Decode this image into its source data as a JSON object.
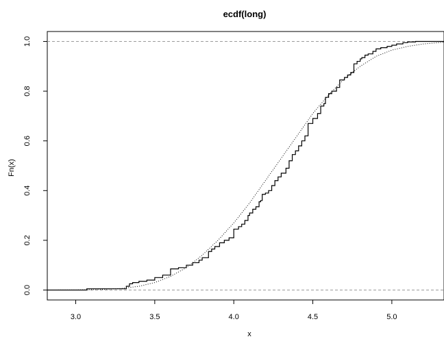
{
  "chart_data": {
    "type": "line",
    "title": "ecdf(long)",
    "xlabel": "x",
    "ylabel": "Fn(x)",
    "xlim": [
      2.82,
      5.33
    ],
    "ylim": [
      -0.04,
      1.04
    ],
    "x_ticks": [
      "3.0",
      "3.5",
      "4.0",
      "4.5",
      "5.0"
    ],
    "y_ticks": [
      "0.0",
      "0.2",
      "0.4",
      "0.6",
      "0.8",
      "1.0"
    ],
    "reference_lines_y": [
      0,
      1
    ],
    "grid": false,
    "series": [
      {
        "style": "step",
        "color": "#000000",
        "x": [
          3.07,
          3.32,
          3.34,
          3.36,
          3.4,
          3.45,
          3.5,
          3.55,
          3.6,
          3.65,
          3.7,
          3.74,
          3.78,
          3.8,
          3.84,
          3.86,
          3.88,
          3.91,
          3.94,
          3.97,
          4.0,
          4.03,
          4.05,
          4.07,
          4.09,
          4.1,
          4.12,
          4.14,
          4.16,
          4.17,
          4.18,
          4.2,
          4.22,
          4.24,
          4.26,
          4.28,
          4.3,
          4.33,
          4.35,
          4.37,
          4.39,
          4.41,
          4.43,
          4.45,
          4.47,
          4.5,
          4.53,
          4.55,
          4.57,
          4.58,
          4.6,
          4.62,
          4.65,
          4.67,
          4.7,
          4.72,
          4.74,
          4.76,
          4.78,
          4.8,
          4.81,
          4.83,
          4.85,
          4.88,
          4.9,
          4.93,
          4.97,
          5.0,
          5.03,
          5.07,
          5.1,
          5.15,
          5.33
        ],
        "y": [
          0.005,
          0.015,
          0.025,
          0.03,
          0.035,
          0.04,
          0.05,
          0.06,
          0.085,
          0.09,
          0.1,
          0.11,
          0.12,
          0.13,
          0.155,
          0.165,
          0.175,
          0.19,
          0.2,
          0.21,
          0.245,
          0.255,
          0.265,
          0.28,
          0.3,
          0.31,
          0.325,
          0.335,
          0.355,
          0.36,
          0.385,
          0.39,
          0.4,
          0.42,
          0.44,
          0.455,
          0.47,
          0.49,
          0.52,
          0.545,
          0.56,
          0.58,
          0.6,
          0.62,
          0.67,
          0.69,
          0.71,
          0.74,
          0.75,
          0.775,
          0.79,
          0.8,
          0.815,
          0.845,
          0.855,
          0.865,
          0.875,
          0.91,
          0.92,
          0.93,
          0.935,
          0.945,
          0.95,
          0.96,
          0.97,
          0.975,
          0.98,
          0.985,
          0.99,
          0.995,
          0.998,
          1.0,
          1.0
        ]
      },
      {
        "style": "dotted",
        "color": "#000000",
        "x": [
          2.82,
          3.0,
          3.2,
          3.3,
          3.4,
          3.5,
          3.6,
          3.7,
          3.8,
          3.9,
          4.0,
          4.1,
          4.2,
          4.3,
          4.4,
          4.5,
          4.6,
          4.7,
          4.8,
          4.9,
          5.0,
          5.1,
          5.2,
          5.33
        ],
        "y": [
          0.0,
          0.0003,
          0.003,
          0.007,
          0.015,
          0.03,
          0.055,
          0.09,
          0.14,
          0.2,
          0.27,
          0.35,
          0.44,
          0.53,
          0.62,
          0.71,
          0.785,
          0.85,
          0.9,
          0.94,
          0.965,
          0.98,
          0.99,
          0.997
        ]
      }
    ]
  }
}
